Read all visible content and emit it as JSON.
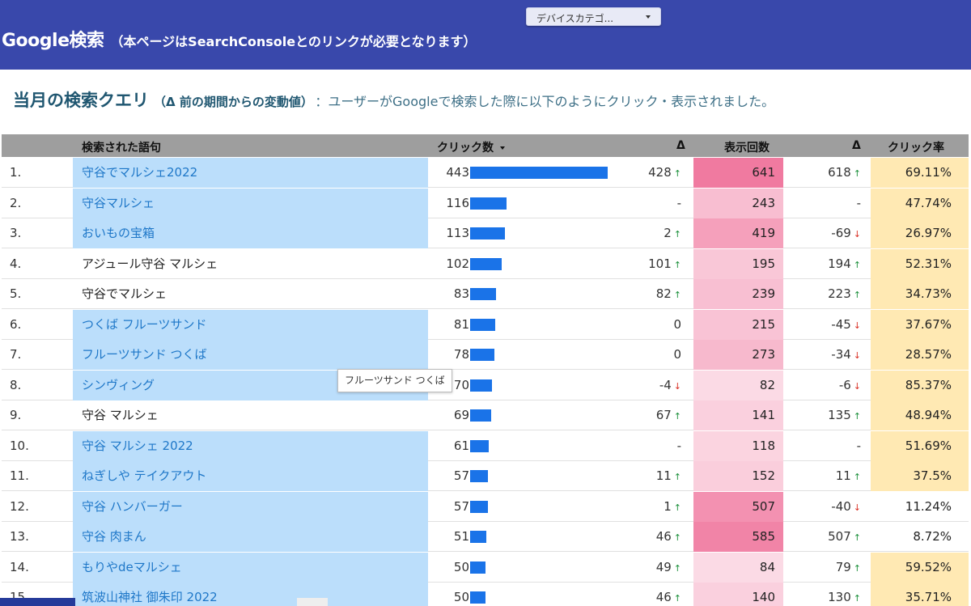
{
  "header": {
    "title": "Google検索",
    "subtitle": "（本ページはSearchConsoleとのリンクが必要となります）",
    "device_dropdown": "デバイスカテゴ..."
  },
  "section": {
    "title": "当月の検索クエリ",
    "paren": "（Δ 前の期間からの変動値）",
    "description": "：ユーザーがGoogleで検索した際に以下のようにクリック・表示されました。"
  },
  "table": {
    "columns": {
      "query": "検索された語句",
      "clicks": "クリック数",
      "delta_clicks": "Δ",
      "impressions": "表示回数",
      "delta_impressions": "Δ",
      "ctr": "クリック率"
    },
    "rows": [
      {
        "num": "1.",
        "query": "守谷でマルシェ2022",
        "linked": true,
        "clicks": "443",
        "clicks_value": 443,
        "d_clicks": "428",
        "d_clicks_dir": "up",
        "impr": "641",
        "impr_value": 641,
        "d_impr": "618",
        "d_impr_dir": "up",
        "ctr": "69.11%",
        "ctr_hl": true
      },
      {
        "num": "2.",
        "query": "守谷マルシェ",
        "linked": true,
        "clicks": "116",
        "clicks_value": 116,
        "d_clicks": "-",
        "d_clicks_dir": "",
        "impr": "243",
        "impr_value": 243,
        "d_impr": "-",
        "d_impr_dir": "",
        "ctr": "47.74%",
        "ctr_hl": true
      },
      {
        "num": "3.",
        "query": "おいもの宝箱",
        "linked": true,
        "clicks": "113",
        "clicks_value": 113,
        "d_clicks": "2",
        "d_clicks_dir": "up",
        "impr": "419",
        "impr_value": 419,
        "d_impr": "-69",
        "d_impr_dir": "down",
        "ctr": "26.97%",
        "ctr_hl": true
      },
      {
        "num": "4.",
        "query": "アジュール守谷 マルシェ",
        "linked": false,
        "clicks": "102",
        "clicks_value": 102,
        "d_clicks": "101",
        "d_clicks_dir": "up",
        "impr": "195",
        "impr_value": 195,
        "d_impr": "194",
        "d_impr_dir": "up",
        "ctr": "52.31%",
        "ctr_hl": true
      },
      {
        "num": "5.",
        "query": "守谷でマルシェ",
        "linked": false,
        "clicks": "83",
        "clicks_value": 83,
        "d_clicks": "82",
        "d_clicks_dir": "up",
        "impr": "239",
        "impr_value": 239,
        "d_impr": "223",
        "d_impr_dir": "up",
        "ctr": "34.73%",
        "ctr_hl": true
      },
      {
        "num": "6.",
        "query": "つくば フルーツサンド",
        "linked": true,
        "clicks": "81",
        "clicks_value": 81,
        "d_clicks": "0",
        "d_clicks_dir": "",
        "impr": "215",
        "impr_value": 215,
        "d_impr": "-45",
        "d_impr_dir": "down",
        "ctr": "37.67%",
        "ctr_hl": true
      },
      {
        "num": "7.",
        "query": "フルーツサンド つくば",
        "linked": true,
        "clicks": "78",
        "clicks_value": 78,
        "d_clicks": "0",
        "d_clicks_dir": "",
        "impr": "273",
        "impr_value": 273,
        "d_impr": "-34",
        "d_impr_dir": "down",
        "ctr": "28.57%",
        "ctr_hl": true
      },
      {
        "num": "8.",
        "query": "シンヴィング",
        "linked": true,
        "clicks": "70",
        "clicks_value": 70,
        "d_clicks": "-4",
        "d_clicks_dir": "down",
        "impr": "82",
        "impr_value": 82,
        "d_impr": "-6",
        "d_impr_dir": "down",
        "ctr": "85.37%",
        "ctr_hl": true
      },
      {
        "num": "9.",
        "query": "守谷 マルシェ",
        "linked": false,
        "clicks": "69",
        "clicks_value": 69,
        "d_clicks": "67",
        "d_clicks_dir": "up",
        "impr": "141",
        "impr_value": 141,
        "d_impr": "135",
        "d_impr_dir": "up",
        "ctr": "48.94%",
        "ctr_hl": true
      },
      {
        "num": "10.",
        "query": "守谷 マルシェ 2022",
        "linked": true,
        "clicks": "61",
        "clicks_value": 61,
        "d_clicks": "-",
        "d_clicks_dir": "",
        "impr": "118",
        "impr_value": 118,
        "d_impr": "-",
        "d_impr_dir": "",
        "ctr": "51.69%",
        "ctr_hl": true
      },
      {
        "num": "11.",
        "query": "ねぎしや テイクアウト",
        "linked": true,
        "clicks": "57",
        "clicks_value": 57,
        "d_clicks": "11",
        "d_clicks_dir": "up",
        "impr": "152",
        "impr_value": 152,
        "d_impr": "11",
        "d_impr_dir": "up",
        "ctr": "37.5%",
        "ctr_hl": true
      },
      {
        "num": "12.",
        "query": "守谷 ハンバーガー",
        "linked": true,
        "clicks": "57",
        "clicks_value": 57,
        "d_clicks": "1",
        "d_clicks_dir": "up",
        "impr": "507",
        "impr_value": 507,
        "d_impr": "-40",
        "d_impr_dir": "down",
        "ctr": "11.24%",
        "ctr_hl": false
      },
      {
        "num": "13.",
        "query": "守谷 肉まん",
        "linked": true,
        "clicks": "51",
        "clicks_value": 51,
        "d_clicks": "46",
        "d_clicks_dir": "up",
        "impr": "585",
        "impr_value": 585,
        "d_impr": "507",
        "d_impr_dir": "up",
        "ctr": "8.72%",
        "ctr_hl": false
      },
      {
        "num": "14.",
        "query": "もりやdeマルシェ",
        "linked": true,
        "clicks": "50",
        "clicks_value": 50,
        "d_clicks": "49",
        "d_clicks_dir": "up",
        "impr": "84",
        "impr_value": 84,
        "d_impr": "79",
        "d_impr_dir": "up",
        "ctr": "59.52%",
        "ctr_hl": true
      },
      {
        "num": "15.",
        "query": "筑波山神社 御朱印 2022",
        "linked": true,
        "clicks": "50",
        "clicks_value": 50,
        "d_clicks": "46",
        "d_clicks_dir": "up",
        "impr": "140",
        "impr_value": 140,
        "d_impr": "130",
        "d_impr_dir": "up",
        "ctr": "35.71%",
        "ctr_hl": true
      }
    ]
  },
  "tooltip": "フルーツサンド つくば",
  "colors": {
    "header_bg": "#3948ab",
    "bar": "#1a73e8",
    "linked_bg": "#bbdefb",
    "linked_text": "#1e77c8",
    "ctr_highlight": "#ffe9b3",
    "impr_heat_low": "#fde8ef",
    "impr_heat_high": "#f07aa0",
    "arrow_up": "#1b8f3a",
    "arrow_down": "#d93025"
  }
}
